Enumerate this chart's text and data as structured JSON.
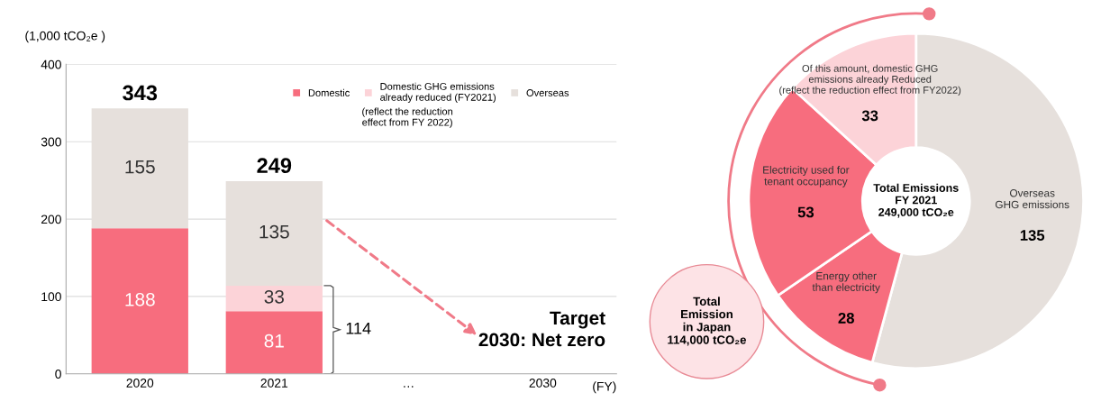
{
  "chart_data": [
    {
      "type": "bar",
      "stacked": true,
      "ylabel": "(1,000 tCO₂e )",
      "xlabel": "(FY)",
      "categories": [
        "2020",
        "2021",
        "…",
        "2030"
      ],
      "series": [
        {
          "name": "Domestic",
          "color": "#f76d7e",
          "values": [
            188,
            81,
            null,
            null
          ]
        },
        {
          "name": "Domestic GHG emissions\nalready reduced (FY2021)",
          "color": "#fcd3d8",
          "values": [
            null,
            33,
            null,
            null
          ]
        },
        {
          "name": "Overseas",
          "color": "#e6e0dc",
          "values": [
            155,
            135,
            null,
            null
          ]
        }
      ],
      "totals": [
        "343",
        "249",
        null,
        null
      ],
      "data_labels": true,
      "ylim": [
        0,
        400
      ],
      "yticks": [
        0,
        100,
        200,
        300,
        400
      ],
      "grid": "y",
      "legend": "top right",
      "annotations": [
        "(reflect the reduction\neffect from FY 2022)",
        "114",
        "Target\n2030: Net zero"
      ]
    },
    {
      "type": "donut",
      "categories": [
        "Overseas\nGHG emissions",
        "Energy other\nthan electricity",
        "Electricity used for\ntenant occupancy",
        "Of this amount, domestic GHG\nemissions already Reduced\n(reflect the reduction effect from FY2022)"
      ],
      "values": [
        135,
        28,
        53,
        33
      ],
      "colors": [
        "#e6e0dc",
        "#f76d7e",
        "#f76d7e",
        "#fcd3d8"
      ],
      "data_labels": true,
      "annotations": [
        "Total Emissions\nFY 2021\n249,000 tCO₂e",
        "Total\nEmission\nin Japan\n114,000 tCO₂e"
      ]
    }
  ]
}
